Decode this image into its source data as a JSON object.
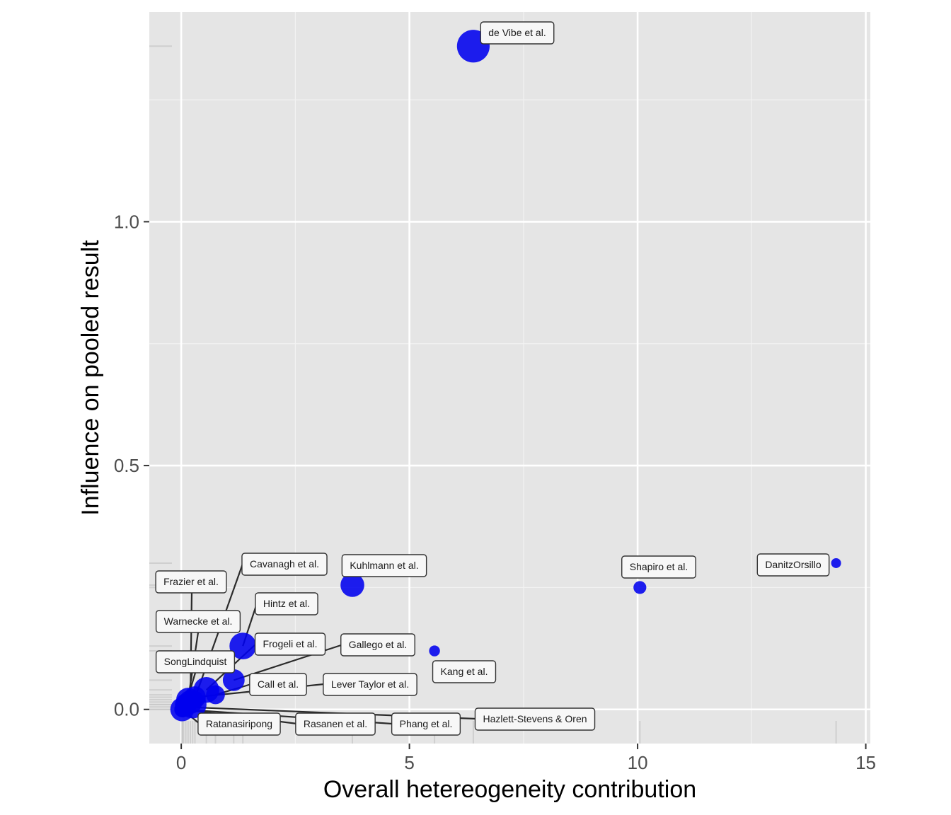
{
  "chart_data": {
    "type": "scatter",
    "title": "",
    "xlabel": "Overall hetereogeneity contribution",
    "ylabel": "Influence on pooled result",
    "xlim": [
      -0.7,
      15.1
    ],
    "ylim": [
      -0.07,
      1.43
    ],
    "x_ticks": [
      0,
      5,
      10,
      15
    ],
    "x_tick_labels": [
      "0",
      "5",
      "10",
      "15"
    ],
    "y_ticks": [
      0.0,
      0.5,
      1.0
    ],
    "y_tick_labels": [
      "0.0",
      "0.5",
      "1.0"
    ],
    "grid": true,
    "legend": "none",
    "point_color": "#0000ee",
    "panel_color": "#e5e5e5",
    "points": [
      {
        "label": "de Vibe et al.",
        "x": 6.4,
        "y": 1.36,
        "size": 3.3
      },
      {
        "label": "DanitzOrsillo",
        "x": 14.35,
        "y": 0.3,
        "size": 1.0
      },
      {
        "label": "Shapiro et al.",
        "x": 10.05,
        "y": 0.25,
        "size": 1.3
      },
      {
        "label": "Kuhlmann et al.",
        "x": 3.75,
        "y": 0.255,
        "size": 2.4
      },
      {
        "label": "Kang et al.",
        "x": 5.55,
        "y": 0.12,
        "size": 1.1
      },
      {
        "label": "Cavanagh et al.",
        "x": 0.25,
        "y": 0.01,
        "size": 2.8
      },
      {
        "label": "Frazier et al.",
        "x": 0.2,
        "y": 0.015,
        "size": 2.4
      },
      {
        "label": "Hintz et al.",
        "x": 1.35,
        "y": 0.13,
        "size": 2.7
      },
      {
        "label": "Warnecke et al.",
        "x": 0.15,
        "y": 0.02,
        "size": 2.4
      },
      {
        "label": "Frogeli et al.",
        "x": 0.55,
        "y": 0.04,
        "size": 2.6
      },
      {
        "label": "Gallego et al.",
        "x": 1.15,
        "y": 0.06,
        "size": 2.2
      },
      {
        "label": "SongLindquist",
        "x": 0.1,
        "y": 0.01,
        "size": 2.2
      },
      {
        "label": "Call et al.",
        "x": 0.75,
        "y": 0.03,
        "size": 1.9
      },
      {
        "label": "Lever Taylor et al.",
        "x": 0.3,
        "y": 0.025,
        "size": 2.2
      },
      {
        "label": "Hazlett-Stevens & Oren",
        "x": 0.05,
        "y": 0.005,
        "size": 1.6
      },
      {
        "label": "Ratanasiripong",
        "x": 0.02,
        "y": 0.0,
        "size": 2.4
      },
      {
        "label": "Rasanen et al.",
        "x": 0.03,
        "y": 0.0,
        "size": 1.6
      },
      {
        "label": "Phang et al.",
        "x": 0.02,
        "y": 0.0,
        "size": 1.6
      }
    ]
  }
}
